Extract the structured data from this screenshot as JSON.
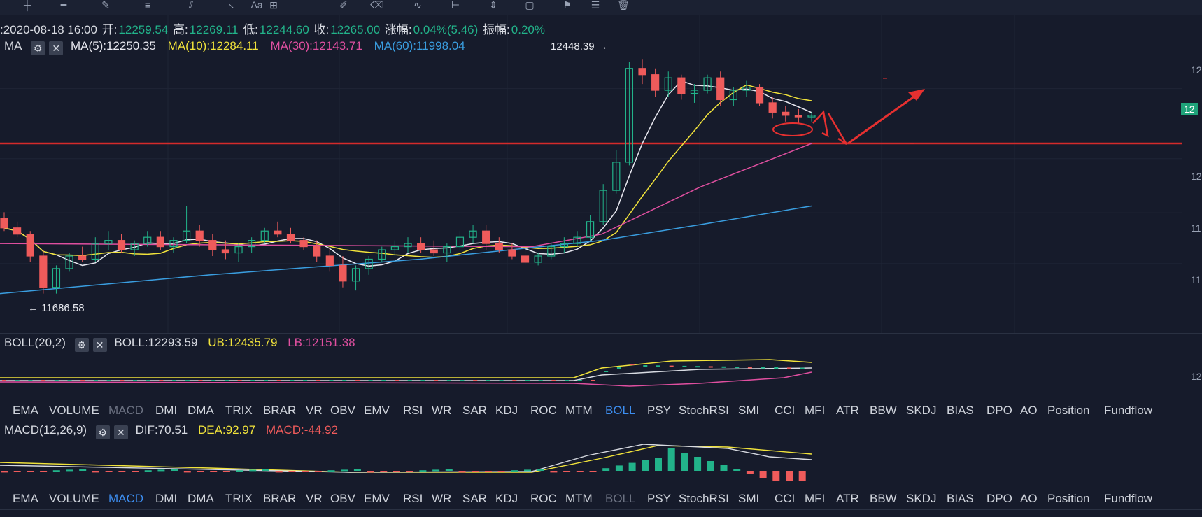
{
  "toolbar": {
    "icons": [
      "crosshair-icon",
      "horizontal-line-icon",
      "pen-tool-icon",
      "fibonacci-icon",
      "parallel-channel-icon",
      "trend-angle-icon",
      "grid-icon",
      "text-icon",
      "brush-icon",
      "eraser-icon",
      "path-icon",
      "measure-icon",
      "price-range-icon",
      "note-icon",
      "flag-icon",
      "text-box-icon",
      "delete-icon"
    ],
    "text_label": "Aa"
  },
  "info": {
    "date": ":2020-08-18 16:00",
    "open_label": "开:",
    "open": "12259.54",
    "high_label": "高:",
    "high": "12269.11",
    "low_label": "低:",
    "low": "12244.60",
    "close_label": "收:",
    "close": "12265.00",
    "change_label": "涨幅:",
    "change": "0.04%(5.46)",
    "amp_label": "振幅:",
    "amp": "0.20%"
  },
  "ma": {
    "name": "MA",
    "ma5": "MA(5):12250.35",
    "ma10": "MA(10):12284.11",
    "ma30": "MA(30):12143.71",
    "ma60": "MA(60):11998.04"
  },
  "boll": {
    "name": "BOLL(20,2)",
    "mid": "BOLL:12293.59",
    "ub": "UB:12435.79",
    "lb": "LB:12151.38"
  },
  "macd": {
    "name": "MACD(12,26,9)",
    "dif": "DIF:70.51",
    "dea": "DEA:92.97",
    "hist": "MACD:-44.92"
  },
  "tabs": [
    "EMA",
    "VOLUME",
    "MACD",
    "DMI",
    "DMA",
    "TRIX",
    "BRAR",
    "VR",
    "OBV",
    "EMV",
    "RSI",
    "WR",
    "SAR",
    "KDJ",
    "ROC",
    "MTM",
    "BOLL",
    "PSY",
    "StochRSI",
    "SMI",
    "CCI",
    "MFI",
    "ATR",
    "BBW",
    "SKDJ",
    "BIAS",
    "DPO",
    "AO",
    "Position",
    "Fundflow"
  ],
  "tabs_row1_active": "BOLL",
  "tabs_row1_muted": "MACD",
  "tabs_row2_active": "MACD",
  "tabs_row2_muted": "BOLL",
  "annotations": {
    "max": "12448.39",
    "min": "11686.58"
  },
  "axis": {
    "price_right": [
      "12",
      "12",
      "12",
      "11",
      "11"
    ],
    "boll_right": "12",
    "current_tag": "12"
  },
  "colors": {
    "up": "#22b38a",
    "down": "#ef5b5b",
    "ma5": "#e8e8f0",
    "ma10": "#f1e33b",
    "ma30": "#e04fa0",
    "ma60": "#3a9ee0",
    "support_line": "#d42b2b",
    "drawing": "#e63030"
  },
  "chart_data": {
    "type": "candlestick",
    "title": "",
    "series_open_high_low_close": [
      [
        11940,
        11960,
        11900,
        11910
      ],
      [
        11910,
        11930,
        11880,
        11890
      ],
      [
        11890,
        11900,
        11800,
        11820
      ],
      [
        11820,
        11840,
        11700,
        11720
      ],
      [
        11720,
        11790,
        11700,
        11780
      ],
      [
        11780,
        11830,
        11770,
        11820
      ],
      [
        11820,
        11850,
        11800,
        11810
      ],
      [
        11810,
        11880,
        11800,
        11860
      ],
      [
        11860,
        11900,
        11840,
        11870
      ],
      [
        11870,
        11890,
        11830,
        11840
      ],
      [
        11840,
        11870,
        11820,
        11860
      ],
      [
        11860,
        11900,
        11850,
        11880
      ],
      [
        11880,
        11900,
        11840,
        11850
      ],
      [
        11850,
        11880,
        11830,
        11870
      ],
      [
        11870,
        11980,
        11860,
        11900
      ],
      [
        11900,
        11920,
        11850,
        11870
      ],
      [
        11870,
        11890,
        11820,
        11840
      ],
      [
        11840,
        11870,
        11810,
        11830
      ],
      [
        11830,
        11860,
        11800,
        11850
      ],
      [
        11850,
        11880,
        11830,
        11870
      ],
      [
        11870,
        11910,
        11860,
        11900
      ],
      [
        11900,
        11930,
        11880,
        11890
      ],
      [
        11890,
        11910,
        11860,
        11870
      ],
      [
        11870,
        11880,
        11840,
        11850
      ],
      [
        11850,
        11870,
        11800,
        11820
      ],
      [
        11820,
        11850,
        11770,
        11790
      ],
      [
        11790,
        11820,
        11720,
        11740
      ],
      [
        11740,
        11790,
        11710,
        11780
      ],
      [
        11780,
        11820,
        11760,
        11810
      ],
      [
        11810,
        11850,
        11800,
        11840
      ],
      [
        11840,
        11870,
        11820,
        11850
      ],
      [
        11850,
        11880,
        11830,
        11860
      ],
      [
        11860,
        11880,
        11830,
        11840
      ],
      [
        11840,
        11870,
        11820,
        11830
      ],
      [
        11830,
        11860,
        11800,
        11850
      ],
      [
        11850,
        11900,
        11840,
        11880
      ],
      [
        11880,
        11920,
        11860,
        11900
      ],
      [
        11900,
        11920,
        11840,
        11860
      ],
      [
        11860,
        11880,
        11830,
        11840
      ],
      [
        11840,
        11860,
        11810,
        11820
      ],
      [
        11820,
        11840,
        11790,
        11800
      ],
      [
        11800,
        11830,
        11790,
        11820
      ],
      [
        11820,
        11860,
        11810,
        11850
      ],
      [
        11850,
        11880,
        11830,
        11860
      ],
      [
        11860,
        11900,
        11850,
        11880
      ],
      [
        11880,
        11950,
        11870,
        11930
      ],
      [
        11930,
        12050,
        11920,
        12030
      ],
      [
        12030,
        12160,
        12020,
        12120
      ],
      [
        12120,
        12440,
        12110,
        12420
      ],
      [
        12420,
        12448,
        12370,
        12400
      ],
      [
        12400,
        12420,
        12330,
        12350
      ],
      [
        12350,
        12410,
        12330,
        12390
      ],
      [
        12390,
        12400,
        12320,
        12340
      ],
      [
        12340,
        12370,
        12310,
        12350
      ],
      [
        12350,
        12400,
        12340,
        12390
      ],
      [
        12390,
        12410,
        12300,
        12320
      ],
      [
        12320,
        12360,
        12300,
        12350
      ],
      [
        12350,
        12380,
        12330,
        12360
      ],
      [
        12360,
        12370,
        12300,
        12310
      ],
      [
        12310,
        12330,
        12260,
        12280
      ],
      [
        12280,
        12300,
        12250,
        12270
      ],
      [
        12270,
        12290,
        12244,
        12265
      ],
      [
        12265,
        12280,
        12250,
        12270
      ]
    ],
    "ma_lines": [
      "MA(5)",
      "MA(10)",
      "MA(30)",
      "MA(60)"
    ],
    "max_label": 12448.39,
    "min_label": 11686.58,
    "support_level": 12180
  }
}
